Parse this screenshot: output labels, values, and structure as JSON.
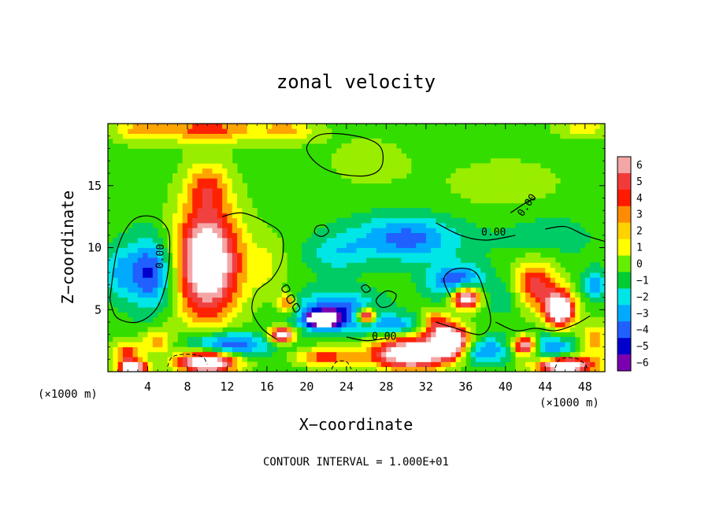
{
  "chart_data": {
    "type": "heatmap",
    "title": "zonal velocity",
    "xlabel": "X−coordinate",
    "ylabel": "Z−coordinate",
    "x_unit_left": "(×1000 m)",
    "x_unit_right": "(×1000 m)",
    "xlim": [
      0,
      50
    ],
    "ylim": [
      0,
      20
    ],
    "x_ticks": [
      4,
      8,
      12,
      16,
      20,
      24,
      28,
      32,
      36,
      40,
      44,
      48
    ],
    "x_tick_labels": [
      "4",
      "8",
      "12",
      "16",
      "20",
      "24",
      "28",
      "32",
      "36",
      "40",
      "44",
      "48"
    ],
    "y_ticks": [
      5,
      10,
      15
    ],
    "y_tick_labels": [
      "5",
      "10",
      "15"
    ],
    "colorbar": {
      "levels": [
        6,
        5,
        4,
        3,
        2,
        1,
        0,
        -1,
        -2,
        -3,
        -4,
        -5,
        -6
      ],
      "labels": [
        "6",
        "5",
        "4",
        "3",
        "2",
        "1",
        "0",
        "−1",
        "−2",
        "−3",
        "−4",
        "−5",
        "−6"
      ],
      "colors": [
        "#f4a6a6",
        "#f23a3a",
        "#ff1a00",
        "#ff8c00",
        "#ffd200",
        "#ffff00",
        "#66ee00",
        "#00cc33",
        "#00e6e6",
        "#00aaff",
        "#2060ff",
        "#0000cc",
        "#7a00b0"
      ]
    },
    "background_color": "#33dd00",
    "colormap": [
      [
        -6,
        "#7a00b0"
      ],
      [
        -5,
        "#0000cc"
      ],
      [
        -4,
        "#2060ff"
      ],
      [
        -3,
        "#00aaff"
      ],
      [
        -2,
        "#00e6e6"
      ],
      [
        -1,
        "#00cc66"
      ],
      [
        0,
        "#33dd00"
      ],
      [
        1,
        "#99ee00"
      ],
      [
        2,
        "#ffff00"
      ],
      [
        3,
        "#ffa500"
      ],
      [
        4,
        "#ff2200"
      ],
      [
        5,
        "#f04040"
      ],
      [
        6,
        "#f4a6a6"
      ]
    ],
    "features": [
      {
        "x": 10,
        "z": 19.6,
        "sx": 5,
        "sz": 1.2,
        "v": 4
      },
      {
        "x": 3,
        "z": 19.5,
        "sx": 2.5,
        "sz": 1,
        "v": 2.5
      },
      {
        "x": 18,
        "z": 19.5,
        "sx": 3,
        "sz": 1,
        "v": 2.5
      },
      {
        "x": 48,
        "z": 19.7,
        "sx": 3,
        "sz": 0.8,
        "v": 2
      },
      {
        "x": 10,
        "z": 8.8,
        "sx": 3.3,
        "sz": 4.5,
        "v": 9
      },
      {
        "x": 10,
        "z": 15,
        "sx": 2.2,
        "sz": 2,
        "v": 3
      },
      {
        "x": 4.3,
        "z": 8,
        "sx": 2.5,
        "sz": 2.8,
        "v": -5
      },
      {
        "x": 1,
        "z": 8,
        "sx": 1.5,
        "sz": 2,
        "v": -2
      },
      {
        "x": 2,
        "z": 1.5,
        "sx": 1.5,
        "sz": 1,
        "v": 4
      },
      {
        "x": 2.5,
        "z": 0.3,
        "sx": 1.5,
        "sz": 0.6,
        "v": 8
      },
      {
        "x": 5,
        "z": 2.5,
        "sx": 1.5,
        "sz": 1,
        "v": 3
      },
      {
        "x": 12,
        "z": 2.2,
        "sx": 4,
        "sz": 1,
        "v": -5
      },
      {
        "x": 10,
        "z": 0.8,
        "sx": 3,
        "sz": 0.9,
        "v": 9
      },
      {
        "x": 23,
        "z": 4.8,
        "sx": 4,
        "sz": 1.6,
        "v": -5
      },
      {
        "x": 21.5,
        "z": 4.2,
        "sx": 1.5,
        "sz": 0.6,
        "v": -8
      },
      {
        "x": 26,
        "z": 4.5,
        "sx": 1,
        "sz": 0.6,
        "v": 9
      },
      {
        "x": 17.5,
        "z": 3,
        "sx": 1.2,
        "sz": 0.6,
        "v": 9
      },
      {
        "x": 18,
        "z": 5.5,
        "sx": 1,
        "sz": 0.8,
        "v": 4
      },
      {
        "x": 22,
        "z": 1.2,
        "sx": 3,
        "sz": 0.8,
        "v": 4
      },
      {
        "x": 30.5,
        "z": 1.5,
        "sx": 4,
        "sz": 1.3,
        "v": 9
      },
      {
        "x": 34.5,
        "z": 2.5,
        "sx": 2,
        "sz": 1.2,
        "v": 9
      },
      {
        "x": 33,
        "z": 4,
        "sx": 1.5,
        "sz": 1,
        "v": 4
      },
      {
        "x": 29,
        "z": 3.8,
        "sx": 3,
        "sz": 0.8,
        "v": -3
      },
      {
        "x": 30,
        "z": 10.8,
        "sx": 5.5,
        "sz": 1.8,
        "v": -4
      },
      {
        "x": 23,
        "z": 9.5,
        "sx": 3,
        "sz": 1.5,
        "v": -2
      },
      {
        "x": 35,
        "z": 7.3,
        "sx": 2.8,
        "sz": 1.4,
        "v": -4.5
      },
      {
        "x": 36,
        "z": 6,
        "sx": 1.5,
        "sz": 0.9,
        "v": 9
      },
      {
        "x": 37.5,
        "z": 1.7,
        "sx": 2.5,
        "sz": 1.1,
        "v": -4
      },
      {
        "x": 43,
        "z": 7,
        "sx": 2.3,
        "sz": 2,
        "v": 5
      },
      {
        "x": 45.5,
        "z": 5,
        "sx": 1.5,
        "sz": 1.4,
        "v": 9
      },
      {
        "x": 42,
        "z": 2.1,
        "sx": 1.3,
        "sz": 0.8,
        "v": 9
      },
      {
        "x": 44,
        "z": 2,
        "sx": 3,
        "sz": 1,
        "v": -4
      },
      {
        "x": 46,
        "z": 0.5,
        "sx": 3,
        "sz": 0.7,
        "v": 9
      },
      {
        "x": 49,
        "z": 2.5,
        "sx": 1.5,
        "sz": 1.5,
        "v": 3
      },
      {
        "x": 26,
        "z": 17,
        "sx": 5,
        "sz": 2.5,
        "v": 0.8
      },
      {
        "x": 40,
        "z": 15,
        "sx": 8,
        "sz": 3,
        "v": 0.8
      },
      {
        "x": 44,
        "z": 11,
        "sx": 5,
        "sz": 2,
        "v": -1.2
      },
      {
        "x": 40,
        "z": 6,
        "sx": 2,
        "sz": 1.5,
        "v": -1.5
      },
      {
        "x": 16,
        "z": 8.5,
        "sx": 2,
        "sz": 2.5,
        "v": 1.5
      },
      {
        "x": 49,
        "z": 7,
        "sx": 1.2,
        "sz": 1.2,
        "v": -3
      }
    ],
    "zero_contours": [
      [
        [
          0.3,
          6.5
        ],
        [
          1,
          10
        ],
        [
          2.5,
          12.2
        ],
        [
          4.5,
          12.5
        ],
        [
          6,
          11.5
        ],
        [
          6.2,
          9.5
        ],
        [
          5.8,
          7
        ],
        [
          4.8,
          5
        ],
        [
          3,
          4
        ],
        [
          1,
          4.3
        ],
        [
          0.3,
          5.5
        ]
      ],
      [
        [
          11.5,
          12.5
        ],
        [
          13.5,
          12.8
        ],
        [
          16,
          12
        ],
        [
          17.5,
          11
        ],
        [
          17.5,
          9
        ],
        [
          16.5,
          7.5
        ],
        [
          15,
          6.5
        ],
        [
          14.5,
          5
        ],
        [
          15.5,
          3.5
        ],
        [
          17,
          2.6
        ]
      ],
      [
        [
          20,
          18
        ],
        [
          21,
          16.8
        ],
        [
          23,
          16
        ],
        [
          26,
          15.8
        ],
        [
          27.5,
          16.5
        ],
        [
          27.5,
          18
        ],
        [
          26,
          18.8
        ],
        [
          23,
          19.2
        ],
        [
          21,
          19
        ]
      ],
      [
        [
          20.8,
          11.2
        ],
        [
          21.5,
          10.9
        ],
        [
          22.2,
          11.3
        ],
        [
          21.8,
          11.8
        ],
        [
          21,
          11.7
        ]
      ],
      [
        [
          17.5,
          6.7
        ],
        [
          18,
          7
        ],
        [
          18.3,
          6.6
        ],
        [
          17.8,
          6.4
        ]
      ],
      [
        [
          18,
          5.9
        ],
        [
          18.5,
          6.2
        ],
        [
          18.8,
          5.8
        ],
        [
          18.3,
          5.5
        ]
      ],
      [
        [
          18.6,
          5.2
        ],
        [
          19,
          5.5
        ],
        [
          19.3,
          5.1
        ],
        [
          18.9,
          4.8
        ]
      ],
      [
        [
          25.5,
          6.8
        ],
        [
          26,
          7
        ],
        [
          26.4,
          6.6
        ],
        [
          25.9,
          6.4
        ]
      ],
      [
        [
          27,
          5.8
        ],
        [
          28,
          6.5
        ],
        [
          29,
          6.2
        ],
        [
          28.5,
          5.4
        ],
        [
          27.5,
          5.2
        ]
      ],
      [
        [
          33,
          4
        ],
        [
          35,
          3.5
        ],
        [
          37.5,
          3
        ],
        [
          38.5,
          4
        ],
        [
          38,
          6
        ],
        [
          37,
          8
        ],
        [
          35,
          8.3
        ],
        [
          33.8,
          7.5
        ],
        [
          34.5,
          6
        ]
      ],
      [
        [
          40.5,
          12.8
        ],
        [
          42,
          13.6
        ],
        [
          43,
          14
        ]
      ],
      [
        [
          44,
          11.5
        ],
        [
          46,
          11.7
        ],
        [
          48,
          11
        ],
        [
          50,
          10.5
        ]
      ],
      [
        [
          33,
          12
        ],
        [
          35.5,
          11
        ],
        [
          38,
          10.6
        ],
        [
          41,
          11
        ]
      ],
      [
        [
          39,
          4
        ],
        [
          41,
          3.3
        ],
        [
          43,
          3.5
        ],
        [
          45,
          3.3
        ],
        [
          47,
          3.8
        ],
        [
          48.5,
          4.5
        ]
      ],
      [
        [
          24,
          2.8
        ],
        [
          26,
          2.5
        ],
        [
          28,
          2.7
        ]
      ]
    ],
    "dashed_contours": [
      [
        [
          6,
          0.4
        ],
        [
          6.5,
          1.2
        ],
        [
          8,
          1.4
        ],
        [
          9.5,
          1.2
        ],
        [
          10,
          0.6
        ]
      ],
      [
        [
          45,
          0.3
        ],
        [
          45.5,
          1
        ],
        [
          47,
          1.1
        ],
        [
          48,
          0.6
        ],
        [
          48.2,
          0.2
        ]
      ],
      [
        [
          22.5,
          0.2
        ],
        [
          23,
          0.8
        ],
        [
          24,
          0.8
        ],
        [
          24.5,
          0.2
        ]
      ]
    ],
    "contour_labels": [
      {
        "text": "0.00",
        "x": 42.2,
        "z": 13.4,
        "angle": -55
      },
      {
        "text": "0.00",
        "x": 38.8,
        "z": 11.2,
        "angle": 0
      },
      {
        "text": "0.00",
        "x": 5.3,
        "z": 9.3,
        "angle": -88
      },
      {
        "text": "0.00",
        "x": 27.8,
        "z": 2.8,
        "angle": 0
      }
    ]
  },
  "footer": {
    "contour_interval": "CONTOUR INTERVAL = 1.000E+01"
  }
}
